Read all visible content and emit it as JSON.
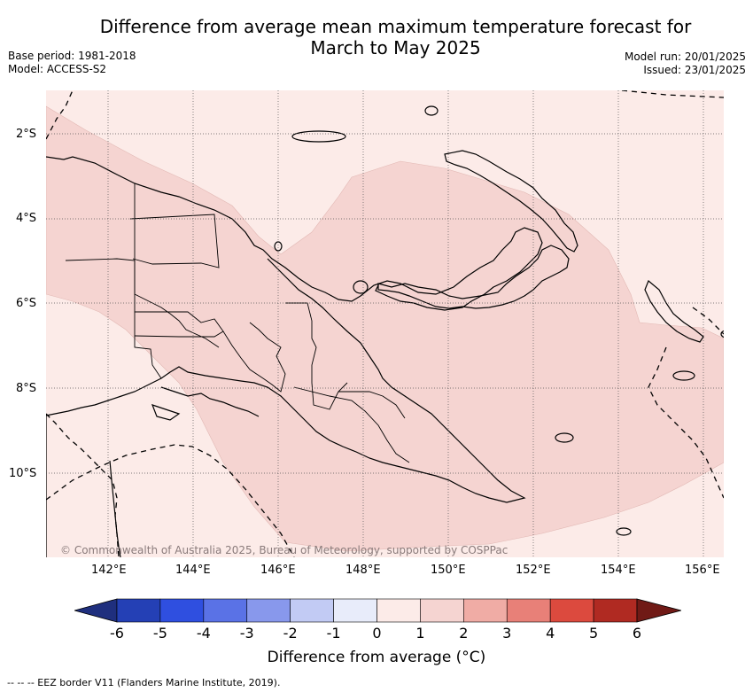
{
  "title_line1": "Difference from average mean maximum temperature forecast for",
  "title_line2": "March to May 2025",
  "base_period": "Base period: 1981-2018",
  "model": "Model: ACCESS-S2",
  "model_run": "Model run: 20/01/2025",
  "issued": "Issued: 23/01/2025",
  "lat_labels": [
    "2°S",
    "4°S",
    "6°S",
    "8°S",
    "10°S"
  ],
  "lon_labels": [
    "142°E",
    "144°E",
    "146°E",
    "148°E",
    "150°E",
    "152°E",
    "154°E",
    "156°E"
  ],
  "credit": "© Commonwealth of Australia 2025, Bureau of Meteorology, supported by COSPPac",
  "colorbar": {
    "ticks": [
      "-6",
      "-5",
      "-4",
      "-3",
      "-2",
      "-1",
      "0",
      "1",
      "2",
      "3",
      "4",
      "5",
      "6"
    ],
    "colors": [
      "#1f2f7e",
      "#2440b5",
      "#2f4fe0",
      "#5a72e6",
      "#8898ec",
      "#c2cbf4",
      "#e8ecfa",
      "#fcebe8",
      "#f5d4d1",
      "#f0aca5",
      "#e88078",
      "#dc4a3e",
      "#b02a22",
      "#701a16"
    ],
    "title": "Difference from average (°C)"
  },
  "legend_note": "-- -- -- EEZ border V11 (Flanders Marine Institute, 2019).",
  "map_colors": {
    "ocean_outer": "#fcebe8",
    "anomaly_1_2": "#f5d4d1"
  }
}
